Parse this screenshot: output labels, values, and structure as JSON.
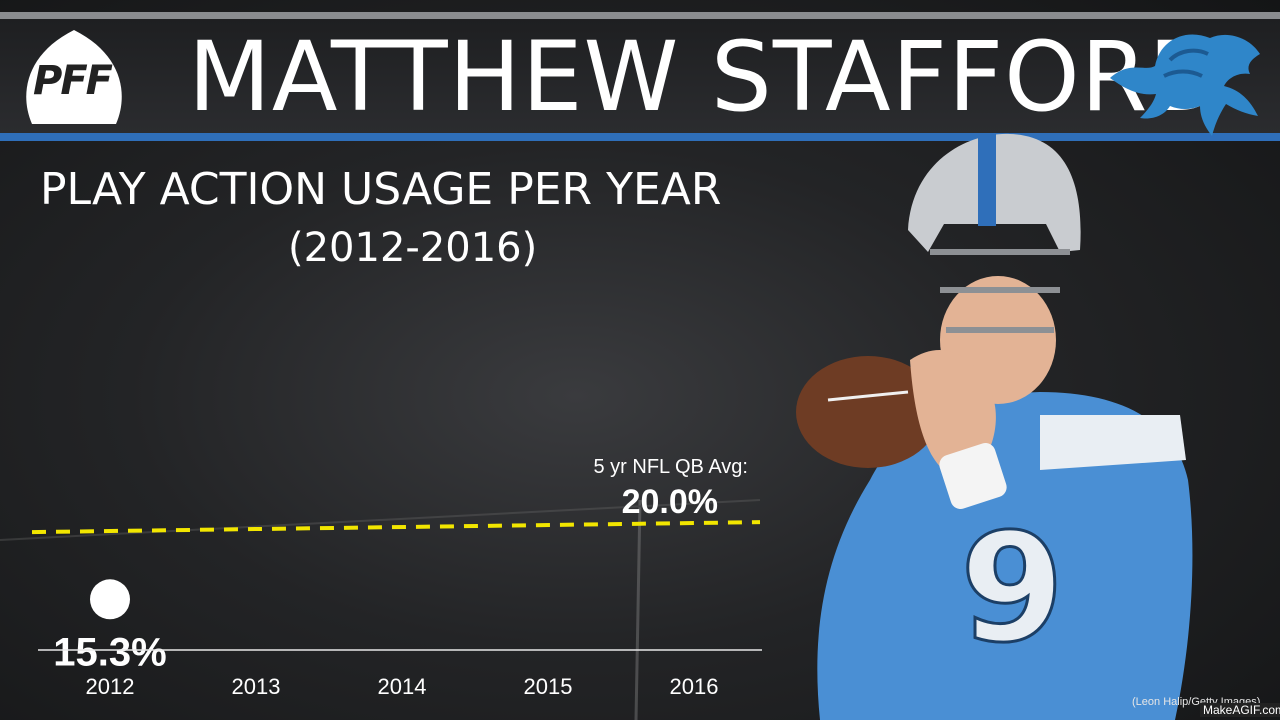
{
  "header": {
    "brand": "PFF",
    "player_name": "MATTHEW STAFFORD",
    "team_logo_icon": "lion-logo-icon"
  },
  "chart_data": {
    "type": "line",
    "title": "PLAY ACTION USAGE PER YEAR",
    "subtitle": "(2012-2016)",
    "categories": [
      "2012",
      "2013",
      "2014",
      "2015",
      "2016"
    ],
    "series": [
      {
        "values": [
          15.3,
          null,
          null,
          null,
          null
        ],
        "labels": [
          "15.3%",
          "",
          "",
          "",
          ""
        ]
      }
    ],
    "reference_line": {
      "label": "5 yr NFL QB Avg:",
      "value": 20.0,
      "value_label": "20.0%"
    },
    "ylim": [
      12,
      30
    ],
    "grid": false
  },
  "credit": "(Leon Halip/Getty Images)",
  "watermark": "MakeAGIF.com",
  "colors": {
    "accent_blue": "#2f6fba",
    "reference_line": "#f2e600",
    "point": "#ffffff"
  }
}
